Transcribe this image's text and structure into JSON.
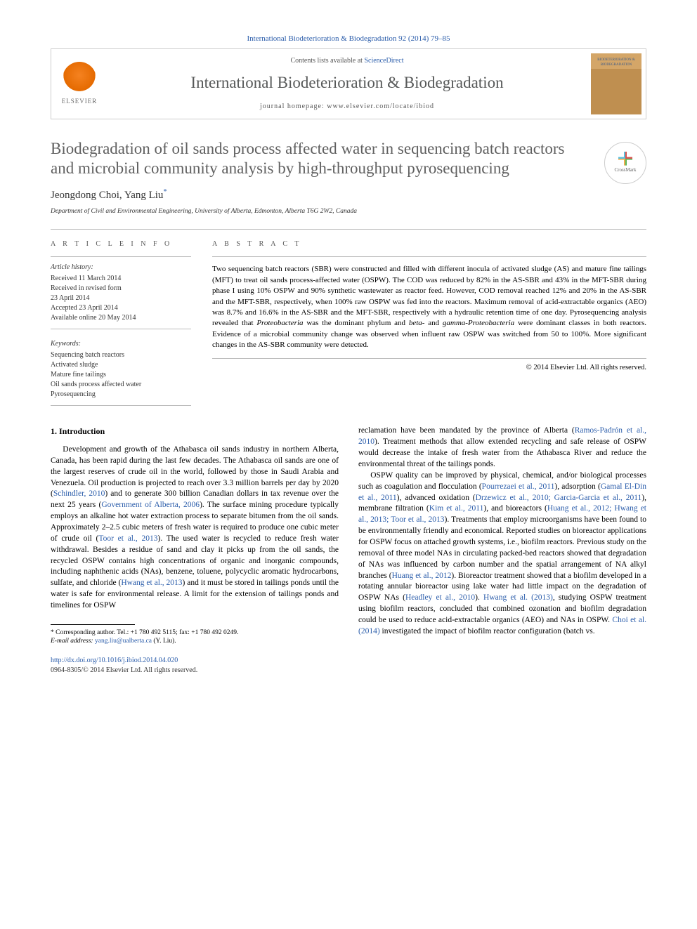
{
  "journal_ref": "International Biodeterioration & Biodegradation 92 (2014) 79–85",
  "header": {
    "contents_prefix": "Contents lists available at ",
    "contents_link": "ScienceDirect",
    "journal_title": "International Biodeterioration & Biodegradation",
    "homepage_prefix": "journal homepage: ",
    "homepage_url": "www.elsevier.com/locate/ibiod",
    "elsevier_label": "ELSEVIER",
    "thumb_label": "BIODETERIORATION & BIODEGRADATION"
  },
  "title": "Biodegradation of oil sands process affected water in sequencing batch reactors and microbial community analysis by high-throughput pyrosequencing",
  "crossmark_label": "CrossMark",
  "authors_html": "Jeongdong Choi, Yang Liu",
  "author_marker": "*",
  "affiliation": "Department of Civil and Environmental Engineering, University of Alberta, Edmonton, Alberta T6G 2W2, Canada",
  "article_info_label": "A R T I C L E  I N F O",
  "abstract_label": "A B S T R A C T",
  "history": {
    "heading": "Article history:",
    "lines": [
      "Received 11 March 2014",
      "Received in revised form",
      "23 April 2014",
      "Accepted 23 April 2014",
      "Available online 20 May 2014"
    ]
  },
  "keywords": {
    "heading": "Keywords:",
    "items": [
      "Sequencing batch reactors",
      "Activated sludge",
      "Mature fine tailings",
      "Oil sands process affected water",
      "Pyrosequencing"
    ]
  },
  "abstract_parts": {
    "p1": "Two sequencing batch reactors (SBR) were constructed and filled with different inocula of activated sludge (AS) and mature fine tailings (MFT) to treat oil sands process-affected water (OSPW). The COD was reduced by 82% in the AS-SBR and 43% in the MFT-SBR during phase I using 10% OSPW and 90% synthetic wastewater as reactor feed. However, COD removal reached 12% and 20% in the AS-SBR and the MFT-SBR, respectively, when 100% raw OSPW was fed into the reactors. Maximum removal of acid-extractable organics (AEO) was 8.7% and 16.6% in the AS-SBR and the MFT-SBR, respectively with a hydraulic retention time of one day. Pyrosequencing analysis revealed that ",
    "em1": "Proteobacteria",
    "p2": " was the dominant phylum and ",
    "em2": "beta-",
    "p3": " and ",
    "em3": "gamma-Proteobacteria",
    "p4": " were dominant classes in both reactors. Evidence of a microbial community change was observed when influent raw OSPW was switched from 50 to 100%. More significant changes in the AS-SBR community were detected."
  },
  "copyright": "© 2014 Elsevier Ltd. All rights reserved.",
  "intro_heading": "1. Introduction",
  "body": {
    "left": {
      "p1a": "Development and growth of the Athabasca oil sands industry in northern Alberta, Canada, has been rapid during the last few decades. The Athabasca oil sands are one of the largest reserves of crude oil in the world, followed by those in Saudi Arabia and Venezuela. Oil production is projected to reach over 3.3 million barrels per day by 2020 (",
      "c1": "Schindler, 2010",
      "p1b": ") and to generate 300 billion Canadian dollars in tax revenue over the next 25 years (",
      "c2": "Government of Alberta, 2006",
      "p1c": "). The surface mining procedure typically employs an alkaline hot water extraction process to separate bitumen from the oil sands. Approximately 2–2.5 cubic meters of fresh water is required to produce one cubic meter of crude oil (",
      "c3": "Toor et al., 2013",
      "p1d": "). The used water is recycled to reduce fresh water withdrawal. Besides a residue of sand and clay it picks up from the oil sands, the recycled OSPW contains high concentrations of organic and inorganic compounds, including naphthenic acids (NAs), benzene, toluene, polycyclic aromatic hydrocarbons, sulfate, and chloride (",
      "c4": "Hwang et al., 2013",
      "p1e": ") and it must be stored in tailings ponds until the water is safe for environmental release. A limit for the extension of tailings ponds and timelines for OSPW"
    },
    "right": {
      "p1a": "reclamation have been mandated by the province of Alberta (",
      "c1": "Ramos-Padrón et al., 2010",
      "p1b": "). Treatment methods that allow extended recycling and safe release of OSPW would decrease the intake of fresh water from the Athabasca River and reduce the environmental threat of the tailings ponds.",
      "p2a": "OSPW quality can be improved by physical, chemical, and/or biological processes such as coagulation and flocculation (",
      "c2": "Pourrezaei et al., 2011",
      "p2b": "), adsorption (",
      "c3": "Gamal El-Din et al., 2011",
      "p2c": "), advanced oxidation (",
      "c4": "Drzewicz et al., 2010; Garcia-Garcia et al., 2011",
      "p2d": "), membrane filtration (",
      "c5": "Kim et al., 2011",
      "p2e": "), and bioreactors (",
      "c6": "Huang et al., 2012; Hwang et al., 2013; Toor et al., 2013",
      "p2f": "). Treatments that employ microorganisms have been found to be environmentally friendly and economical. Reported studies on bioreactor applications for OSPW focus on attached growth systems, i.e., biofilm reactors. Previous study on the removal of three model NAs in circulating packed-bed reactors showed that degradation of NAs was influenced by carbon number and the spatial arrangement of NA alkyl branches (",
      "c7": "Huang et al., 2012",
      "p2g": "). Bioreactor treatment showed that a biofilm developed in a rotating annular bioreactor using lake water had little impact on the degradation of OSPW NAs (",
      "c8": "Headley et al., 2010",
      "p2h": "). ",
      "c9": "Hwang et al. (2013)",
      "p2i": ", studying OSPW treatment using biofilm reactors, concluded that combined ozonation and biofilm degradation could be used to reduce acid-extractable organics (AEO) and NAs in OSPW. ",
      "c10": "Choi et al. (2014)",
      "p2j": " investigated the impact of biofilm reactor configuration (batch vs."
    }
  },
  "corresp": {
    "line1": "* Corresponding author. Tel.: +1 780 492 5115; fax: +1 780 492 0249.",
    "line2a": "E-mail address: ",
    "email": "yang.liu@ualberta.ca",
    "line2b": " (Y. Liu)."
  },
  "doi": "http://dx.doi.org/10.1016/j.ibiod.2014.04.020",
  "issn": "0964-8305/© 2014 Elsevier Ltd. All rights reserved.",
  "colors": {
    "link": "#2a5caa",
    "title_gray": "#606060",
    "rule": "#bbbbbb",
    "text": "#000000"
  }
}
